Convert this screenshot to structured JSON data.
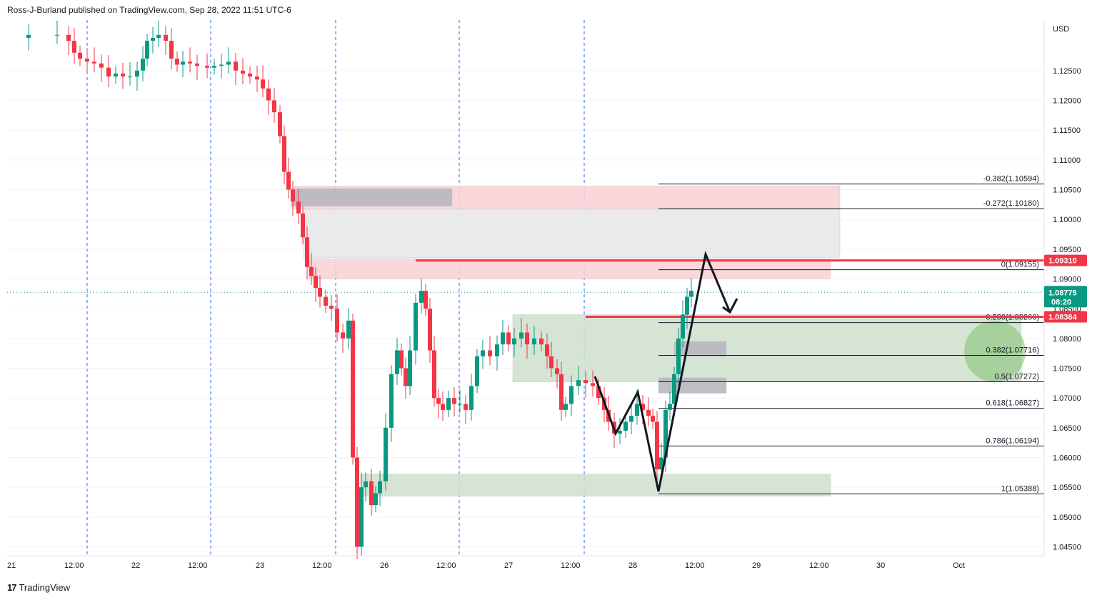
{
  "header": {
    "published": "Ross-J-Burland published on TradingView.com, Sep 28, 2022 11:51 UTC-6"
  },
  "footer": {
    "logo": "17",
    "brand": "TradingView"
  },
  "chart_data": {
    "type": "candlestick",
    "currency": "USD",
    "ylim": [
      1.0435,
      1.1335
    ],
    "y_ticks": [
      "1.12500",
      "1.12000",
      "1.11500",
      "1.11000",
      "1.10500",
      "1.10000",
      "1.09500",
      "1.09000",
      "1.08500",
      "1.08000",
      "1.07500",
      "1.07000",
      "1.06500",
      "1.06000",
      "1.05500",
      "1.05000",
      "1.04500"
    ],
    "x_ticks": [
      "21",
      "12:00",
      "22",
      "12:00",
      "23",
      "12:00",
      "26",
      "12:00",
      "27",
      "12:00",
      "28",
      "12:00",
      "29",
      "12:00",
      "30",
      "Oct"
    ],
    "current_price": {
      "value": "1.08775",
      "countdown": "08:20",
      "color": "#089981"
    },
    "price_levels": [
      {
        "value": "1.09310",
        "color": "#f23645"
      },
      {
        "value": "1.08364",
        "color": "#f23645"
      }
    ],
    "fib_levels": [
      {
        "label": "-0.382(1.10594)",
        "price": 1.10594
      },
      {
        "label": "-0.272(1.10180)",
        "price": 1.1018
      },
      {
        "label": "0(1.09155)",
        "price": 1.09155
      },
      {
        "label": "0.236(1.08266)",
        "price": 1.08266
      },
      {
        "label": "0.382(1.07716)",
        "price": 1.07716
      },
      {
        "label": "0.5(1.07272)",
        "price": 1.07272
      },
      {
        "label": "0.618(1.06827)",
        "price": 1.06827
      },
      {
        "label": "0.786(1.06194)",
        "price": 1.06194
      },
      {
        "label": "1(1.05388)",
        "price": 1.05388
      }
    ],
    "colors": {
      "up": "#089981",
      "down": "#f23645",
      "session": "#2962ff",
      "zone_red": "#f8d0d5",
      "zone_gray": "#eaeaed",
      "zone_green": "#cfdfcc",
      "box_gray": "#b7b7bf"
    },
    "candles": []
  }
}
